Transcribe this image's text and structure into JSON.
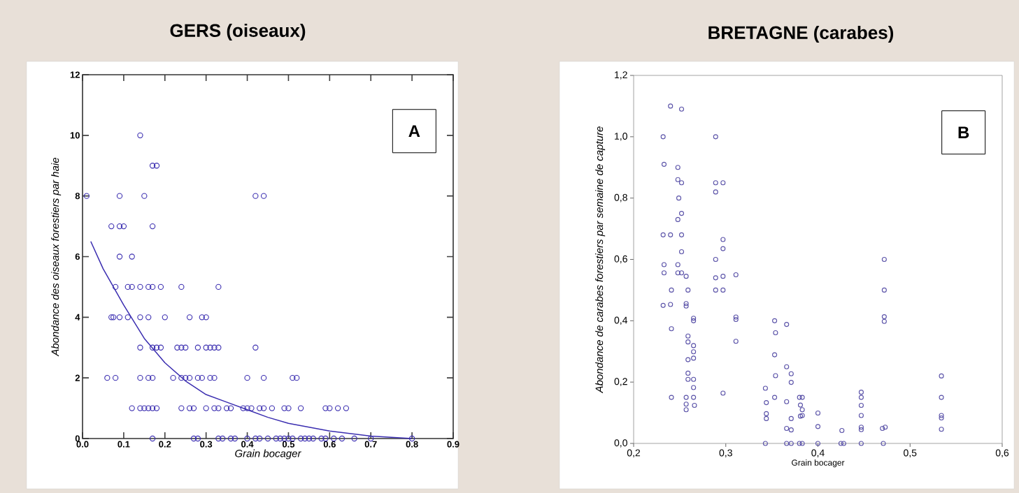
{
  "chart_data": [
    {
      "type": "scatter",
      "title": "GERS (oiseaux)",
      "xlabel": "Grain bocager",
      "ylabel": "Abondance des oiseaux forestiers par haie",
      "annotations": [
        "A"
      ],
      "marker": "circle",
      "xlim": [
        0,
        0.9
      ],
      "ylim": [
        0,
        12
      ],
      "xticks": [
        {
          "value": 0,
          "label": "0.0"
        },
        {
          "value": 0.1,
          "label": "0.1"
        },
        {
          "value": 0.2,
          "label": "0.2"
        },
        {
          "value": 0.3,
          "label": "0.3"
        },
        {
          "value": 0.4,
          "label": "0.4"
        },
        {
          "value": 0.5,
          "label": "0.5"
        },
        {
          "value": 0.6,
          "label": "0.6"
        },
        {
          "value": 0.7,
          "label": "0.7"
        },
        {
          "value": 0.8,
          "label": "0.8"
        },
        {
          "value": 0.9,
          "label": "0.9"
        }
      ],
      "yticks": [
        0,
        2,
        4,
        6,
        8,
        10,
        12
      ],
      "series": [
        {
          "color": "#3a2db0",
          "x": [
            0.14,
            0.17,
            0.18,
            0.01,
            0.09,
            0.15,
            0.42,
            0.44,
            0.07,
            0.09,
            0.1,
            0.17,
            0.09,
            0.12,
            0.08,
            0.11,
            0.12,
            0.14,
            0.16,
            0.17,
            0.19,
            0.24,
            0.33,
            0.07,
            0.075,
            0.09,
            0.11,
            0.14,
            0.16,
            0.2,
            0.26,
            0.29,
            0.3,
            0.14,
            0.17,
            0.18,
            0.19,
            0.23,
            0.24,
            0.25,
            0.28,
            0.3,
            0.31,
            0.32,
            0.33,
            0.42,
            0.06,
            0.08,
            0.14,
            0.16,
            0.17,
            0.22,
            0.24,
            0.25,
            0.26,
            0.28,
            0.29,
            0.31,
            0.32,
            0.4,
            0.44,
            0.51,
            0.52,
            0.12,
            0.14,
            0.15,
            0.16,
            0.17,
            0.18,
            0.24,
            0.26,
            0.27,
            0.3,
            0.32,
            0.33,
            0.35,
            0.36,
            0.39,
            0.4,
            0.41,
            0.43,
            0.44,
            0.46,
            0.49,
            0.5,
            0.53,
            0.59,
            0.6,
            0.62,
            0.64,
            0.17,
            0.27,
            0.28,
            0.33,
            0.34,
            0.36,
            0.37,
            0.4,
            0.42,
            0.43,
            0.45,
            0.47,
            0.48,
            0.49,
            0.5,
            0.51,
            0.53,
            0.54,
            0.55,
            0.56,
            0.58,
            0.59,
            0.61,
            0.63,
            0.66,
            0.7,
            0.8
          ],
          "values": [
            10,
            9,
            9,
            8,
            8,
            8,
            8,
            8,
            7,
            7,
            7,
            7,
            6,
            6,
            5,
            5,
            5,
            5,
            5,
            5,
            5,
            5,
            5,
            4,
            4,
            4,
            4,
            4,
            4,
            4,
            4,
            4,
            4,
            3,
            3,
            3,
            3,
            3,
            3,
            3,
            3,
            3,
            3,
            3,
            3,
            3,
            2,
            2,
            2,
            2,
            2,
            2,
            2,
            2,
            2,
            2,
            2,
            2,
            2,
            2,
            2,
            2,
            2,
            1,
            1,
            1,
            1,
            1,
            1,
            1,
            1,
            1,
            1,
            1,
            1,
            1,
            1,
            1,
            1,
            1,
            1,
            1,
            1,
            1,
            1,
            1,
            1,
            1,
            1,
            1,
            0,
            0,
            0,
            0,
            0,
            0,
            0,
            0,
            0,
            0,
            0,
            0,
            0,
            0,
            0,
            0,
            0,
            0,
            0,
            0,
            0,
            0,
            0,
            0,
            0,
            0,
            0
          ]
        },
        {
          "type": "line",
          "marker": "none",
          "color": "#3a2db0",
          "x": [
            0.02,
            0.05,
            0.1,
            0.15,
            0.2,
            0.25,
            0.3,
            0.35,
            0.4,
            0.45,
            0.5,
            0.6,
            0.7,
            0.8
          ],
          "values": [
            6.5,
            5.6,
            4.4,
            3.3,
            2.5,
            1.9,
            1.45,
            1.2,
            0.95,
            0.7,
            0.5,
            0.25,
            0.08,
            0
          ]
        }
      ]
    },
    {
      "type": "scatter",
      "title": "BRETAGNE (carabes)",
      "xlabel": "Grain bocager",
      "ylabel": "Abondance de carabes forestiers par semaine de capture",
      "annotations": [
        "B"
      ],
      "marker": "circle",
      "xlim": [
        0.2,
        0.6
      ],
      "ylim": [
        0,
        1.2
      ],
      "xticks": [
        {
          "value": 0.2,
          "label": "0,2"
        },
        {
          "value": 0.3,
          "label": "0,3"
        },
        {
          "value": 0.4,
          "label": "0,4"
        },
        {
          "value": 0.5,
          "label": "0,5"
        },
        {
          "value": 0.6,
          "label": "0,6"
        }
      ],
      "yticks": [
        {
          "value": 0,
          "label": "0,0"
        },
        {
          "value": 0.2,
          "label": "0,2"
        },
        {
          "value": 0.4,
          "label": "0,4"
        },
        {
          "value": 0.6,
          "label": "0,6"
        },
        {
          "value": 0.8,
          "label": "0,8"
        },
        {
          "value": 1.0,
          "label": "1,0"
        },
        {
          "value": 1.2,
          "label": "1,2"
        }
      ],
      "series": [
        {
          "color": "#5a52a8",
          "x": [
            0.24,
            0.252,
            0.232,
            0.289,
            0.233,
            0.248,
            0.248,
            0.252,
            0.289,
            0.297,
            0.289,
            0.249,
            0.252,
            0.248,
            0.232,
            0.24,
            0.252,
            0.297,
            0.297,
            0.252,
            0.289,
            0.233,
            0.248,
            0.233,
            0.248,
            0.252,
            0.257,
            0.311,
            0.289,
            0.297,
            0.241,
            0.259,
            0.289,
            0.297,
            0.232,
            0.24,
            0.257,
            0.257,
            0.265,
            0.265,
            0.311,
            0.311,
            0.241,
            0.311,
            0.259,
            0.259,
            0.265,
            0.265,
            0.265,
            0.259,
            0.259,
            0.259,
            0.265,
            0.265,
            0.241,
            0.257,
            0.265,
            0.257,
            0.257,
            0.266,
            0.297,
            0.343,
            0.353,
            0.354,
            0.353,
            0.354,
            0.353,
            0.344,
            0.344,
            0.344,
            0.343,
            0.366,
            0.366,
            0.371,
            0.371,
            0.366,
            0.371,
            0.366,
            0.371,
            0.366,
            0.371,
            0.38,
            0.383,
            0.381,
            0.383,
            0.381,
            0.383,
            0.38,
            0.383,
            0.4,
            0.4,
            0.4,
            0.426,
            0.425,
            0.428,
            0.447,
            0.447,
            0.447,
            0.447,
            0.447,
            0.447,
            0.447,
            0.472,
            0.472,
            0.472,
            0.472,
            0.47,
            0.473,
            0.471,
            0.534,
            0.534,
            0.534,
            0.534,
            0.534
          ],
          "values": [
            1.1,
            1.09,
            1.0,
            1.0,
            0.91,
            0.9,
            0.86,
            0.85,
            0.85,
            0.85,
            0.82,
            0.8,
            0.75,
            0.73,
            0.68,
            0.68,
            0.68,
            0.665,
            0.635,
            0.625,
            0.6,
            0.583,
            0.583,
            0.556,
            0.556,
            0.556,
            0.545,
            0.55,
            0.54,
            0.545,
            0.5,
            0.5,
            0.5,
            0.5,
            0.45,
            0.453,
            0.456,
            0.448,
            0.408,
            0.4,
            0.412,
            0.404,
            0.374,
            0.333,
            0.35,
            0.331,
            0.319,
            0.299,
            0.278,
            0.273,
            0.229,
            0.209,
            0.209,
            0.182,
            0.15,
            0.15,
            0.15,
            0.128,
            0.11,
            0.124,
            0.164,
            0.18,
            0.4,
            0.361,
            0.289,
            0.221,
            0.15,
            0.133,
            0.097,
            0.081,
            0,
            0.388,
            0.25,
            0.227,
            0.199,
            0.136,
            0.081,
            0.049,
            0.044,
            0,
            0,
            0.15,
            0.15,
            0.125,
            0.11,
            0.089,
            0.091,
            0,
            0,
            0.099,
            0.055,
            0,
            0.042,
            0,
            0,
            0.167,
            0.15,
            0.124,
            0.091,
            0.053,
            0.045,
            0,
            0.6,
            0.5,
            0.413,
            0.398,
            0.049,
            0.053,
            0,
            0.22,
            0.15,
            0.091,
            0.083,
            0.046
          ]
        }
      ]
    }
  ]
}
